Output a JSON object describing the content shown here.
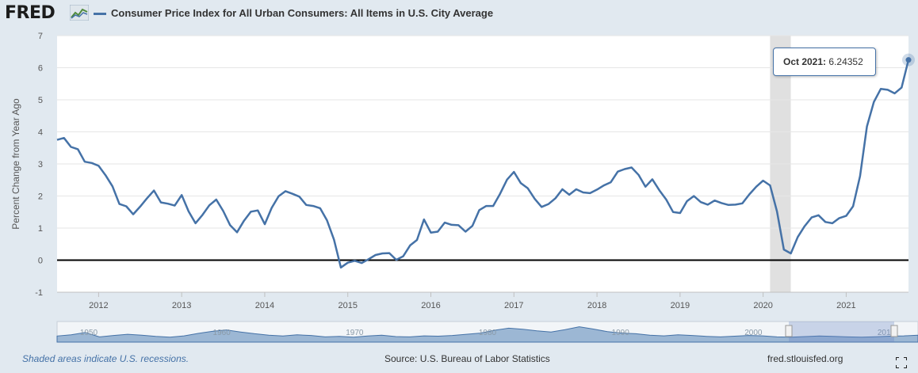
{
  "header": {
    "logo_text": "FRED",
    "series_title": "Consumer Price Index for All Urban Consumers: All Items in U.S. City Average"
  },
  "tooltip": {
    "date": "Oct 2021",
    "value": "6.24352"
  },
  "footer": {
    "recession_note": "Shaded areas indicate U.S. recessions.",
    "source": "Source: U.S. Bureau of Labor Statistics",
    "site": "fred.stlouisfed.org"
  },
  "navigator": {
    "labels": [
      "1950",
      "1960",
      "1970",
      "1980",
      "1990",
      "2000",
      "2010"
    ]
  },
  "colors": {
    "series": "#4572a7",
    "recession": "#e0e0e0",
    "background": "#e1e9f0",
    "plot": "#ffffff"
  },
  "icons": {
    "logo_mark": "fred-chart-icon",
    "fullscreen": "fullscreen-icon"
  },
  "chart_data": {
    "type": "line",
    "title": "Consumer Price Index for All Urban Consumers: All Items in U.S. City Average",
    "xlabel": "",
    "ylabel": "Percent Change from Year Ago",
    "ylim": [
      -1,
      7
    ],
    "xlim": [
      "2011-07",
      "2021-10"
    ],
    "y_ticks": [
      -1,
      0,
      1,
      2,
      3,
      4,
      5,
      6,
      7
    ],
    "x_ticks": [
      "2012",
      "2013",
      "2014",
      "2015",
      "2016",
      "2017",
      "2018",
      "2019",
      "2020",
      "2021"
    ],
    "grid": "horizontal",
    "zero_line": true,
    "recessions": [
      [
        "2020-02",
        "2020-04"
      ]
    ],
    "series": [
      {
        "name": "Consumer Price Index for All Urban Consumers: All Items in U.S. City Average",
        "x": [
          "2011-07",
          "2011-08",
          "2011-09",
          "2011-10",
          "2011-11",
          "2011-12",
          "2012-01",
          "2012-02",
          "2012-03",
          "2012-04",
          "2012-05",
          "2012-06",
          "2012-07",
          "2012-08",
          "2012-09",
          "2012-10",
          "2012-11",
          "2012-12",
          "2013-01",
          "2013-02",
          "2013-03",
          "2013-04",
          "2013-05",
          "2013-06",
          "2013-07",
          "2013-08",
          "2013-09",
          "2013-10",
          "2013-11",
          "2013-12",
          "2014-01",
          "2014-02",
          "2014-03",
          "2014-04",
          "2014-05",
          "2014-06",
          "2014-07",
          "2014-08",
          "2014-09",
          "2014-10",
          "2014-11",
          "2014-12",
          "2015-01",
          "2015-02",
          "2015-03",
          "2015-04",
          "2015-05",
          "2015-06",
          "2015-07",
          "2015-08",
          "2015-09",
          "2015-10",
          "2015-11",
          "2015-12",
          "2016-01",
          "2016-02",
          "2016-03",
          "2016-04",
          "2016-05",
          "2016-06",
          "2016-07",
          "2016-08",
          "2016-09",
          "2016-10",
          "2016-11",
          "2016-12",
          "2017-01",
          "2017-02",
          "2017-03",
          "2017-04",
          "2017-05",
          "2017-06",
          "2017-07",
          "2017-08",
          "2017-09",
          "2017-10",
          "2017-11",
          "2017-12",
          "2018-01",
          "2018-02",
          "2018-03",
          "2018-04",
          "2018-05",
          "2018-06",
          "2018-07",
          "2018-08",
          "2018-09",
          "2018-10",
          "2018-11",
          "2018-12",
          "2019-01",
          "2019-02",
          "2019-03",
          "2019-04",
          "2019-05",
          "2019-06",
          "2019-07",
          "2019-08",
          "2019-09",
          "2019-10",
          "2019-11",
          "2019-12",
          "2020-01",
          "2020-02",
          "2020-03",
          "2020-04",
          "2020-05",
          "2020-06",
          "2020-07",
          "2020-08",
          "2020-09",
          "2020-10",
          "2020-11",
          "2020-12",
          "2021-01",
          "2021-02",
          "2021-03",
          "2021-04",
          "2021-05",
          "2021-06",
          "2021-07",
          "2021-08",
          "2021-09",
          "2021-10"
        ],
        "values": [
          3.75,
          3.81,
          3.53,
          3.46,
          3.07,
          3.03,
          2.94,
          2.65,
          2.3,
          1.75,
          1.68,
          1.43,
          1.67,
          1.93,
          2.17,
          1.8,
          1.76,
          1.7,
          2.03,
          1.52,
          1.15,
          1.41,
          1.71,
          1.89,
          1.53,
          1.09,
          0.87,
          1.23,
          1.51,
          1.55,
          1.12,
          1.63,
          1.99,
          2.15,
          2.07,
          1.98,
          1.72,
          1.69,
          1.62,
          1.24,
          0.64,
          -0.23,
          -0.08,
          -0.02,
          -0.09,
          0.03,
          0.16,
          0.21,
          0.22,
          0.01,
          0.12,
          0.46,
          0.63,
          1.27,
          0.86,
          0.89,
          1.17,
          1.1,
          1.09,
          0.89,
          1.07,
          1.56,
          1.69,
          1.69,
          2.07,
          2.51,
          2.75,
          2.4,
          2.24,
          1.91,
          1.66,
          1.75,
          1.93,
          2.21,
          2.04,
          2.21,
          2.11,
          2.09,
          2.2,
          2.33,
          2.43,
          2.76,
          2.84,
          2.89,
          2.66,
          2.29,
          2.52,
          2.18,
          1.89,
          1.5,
          1.47,
          1.84,
          2.0,
          1.81,
          1.73,
          1.86,
          1.78,
          1.72,
          1.73,
          1.77,
          2.05,
          2.29,
          2.48,
          2.33,
          1.52,
          0.33,
          0.21,
          0.72,
          1.06,
          1.33,
          1.4,
          1.19,
          1.15,
          1.31,
          1.38,
          1.68,
          2.62,
          4.17,
          4.93,
          5.34,
          5.31,
          5.2,
          5.38,
          6.24352
        ]
      }
    ]
  }
}
